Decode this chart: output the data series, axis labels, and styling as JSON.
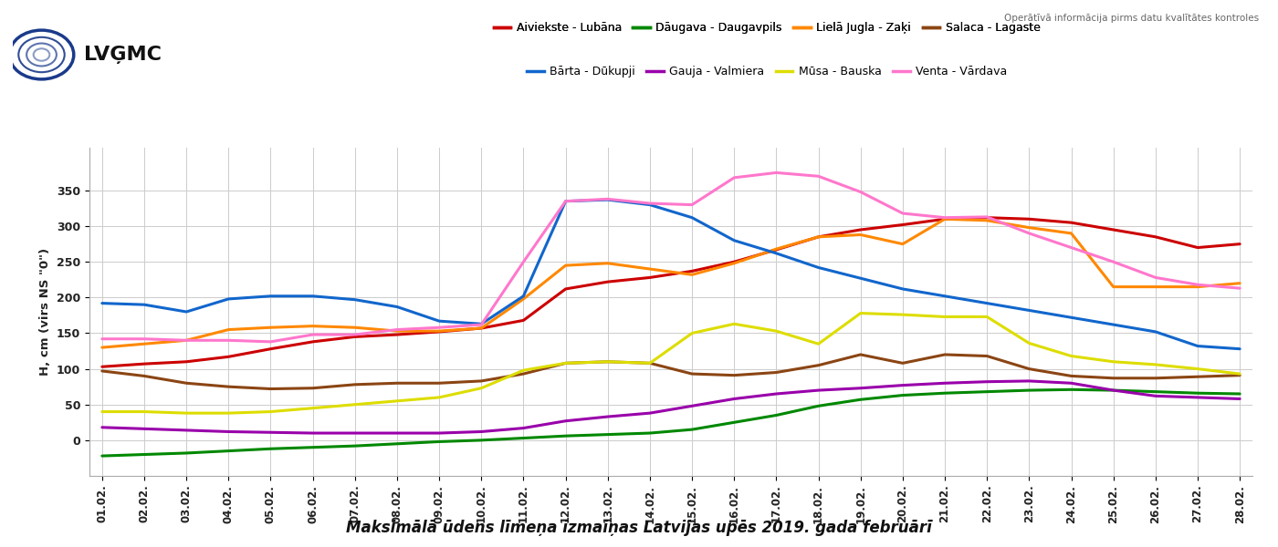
{
  "title": "Maksimālā ūdens līmeņa izmaiņas Latvijas upēs 2019. gada februārī",
  "ylabel": "H, cm (virs NS \"0\")",
  "subtitle": "Operātīvā informācija pirms datu kvalītātes kontroles",
  "dates": [
    "01.02.",
    "02.02.",
    "03.02.",
    "04.02.",
    "05.02.",
    "06.02.",
    "07.02.",
    "08.02.",
    "09.02.",
    "10.02.",
    "11.02.",
    "12.02.",
    "13.02.",
    "14.02.",
    "15.02.",
    "16.02.",
    "17.02.",
    "18.02.",
    "19.02.",
    "20.02.",
    "21.02.",
    "22.02.",
    "23.02.",
    "24.02.",
    "25.02.",
    "26.02.",
    "27.02.",
    "28.02."
  ],
  "series_order": [
    "Aiviekste - Lubāna",
    "Dāugava - Daugavpils",
    "Lielā Jugla - Zaķi",
    "Salaca - Lagaste",
    "Bārta - Dūkupji",
    "Gauja - Valmiera",
    "Mūsa - Bauska",
    "Venta - Vārdava"
  ],
  "legend_row1": [
    "Aiviekste - Lubāna",
    "Dāugava - Daugavpils",
    "Lielā Jugla - Zaķi",
    "Salaca - Lagaste"
  ],
  "legend_row2": [
    "Bārta - Dūkupji",
    "Gauja - Valmiera",
    "Mūsa - Bauska",
    "Venta - Vārdava"
  ],
  "series": {
    "Aiviekste - Lubāna": {
      "color": "#cc0000",
      "data": [
        103,
        107,
        110,
        117,
        128,
        138,
        145,
        148,
        152,
        157,
        168,
        212,
        222,
        228,
        237,
        250,
        267,
        285,
        295,
        302,
        310,
        312,
        310,
        305,
        295,
        285,
        270,
        275
      ]
    },
    "Dāugava - Daugavpils": {
      "color": "#008800",
      "data": [
        -22,
        -20,
        -18,
        -15,
        -12,
        -10,
        -8,
        -5,
        -2,
        0,
        3,
        6,
        8,
        10,
        15,
        25,
        35,
        48,
        57,
        63,
        66,
        68,
        70,
        71,
        70,
        68,
        66,
        65
      ]
    },
    "Lielā Jugla - Zaķi": {
      "color": "#ff8800",
      "data": [
        130,
        135,
        140,
        155,
        158,
        160,
        158,
        153,
        153,
        157,
        198,
        245,
        248,
        240,
        232,
        248,
        268,
        285,
        288,
        275,
        310,
        308,
        298,
        290,
        215,
        215,
        215,
        220
      ]
    },
    "Salaca - Lagaste": {
      "color": "#8B4513",
      "data": [
        97,
        90,
        80,
        75,
        72,
        73,
        78,
        80,
        80,
        83,
        93,
        108,
        110,
        108,
        93,
        91,
        95,
        105,
        120,
        108,
        120,
        118,
        100,
        90,
        87,
        87,
        89,
        91
      ]
    },
    "Bārta - Dūkupji": {
      "color": "#1166cc",
      "data": [
        192,
        190,
        180,
        198,
        202,
        202,
        197,
        187,
        167,
        163,
        202,
        335,
        337,
        330,
        312,
        280,
        262,
        242,
        227,
        212,
        202,
        192,
        182,
        172,
        162,
        152,
        132,
        128
      ]
    },
    "Gauja - Valmiera": {
      "color": "#9900aa",
      "data": [
        18,
        16,
        14,
        12,
        11,
        10,
        10,
        10,
        10,
        12,
        17,
        27,
        33,
        38,
        48,
        58,
        65,
        70,
        73,
        77,
        80,
        82,
        83,
        80,
        70,
        62,
        60,
        58
      ]
    },
    "Mūsa - Bauska": {
      "color": "#dddd00",
      "data": [
        40,
        40,
        38,
        38,
        40,
        45,
        50,
        55,
        60,
        73,
        98,
        108,
        110,
        108,
        150,
        163,
        153,
        135,
        178,
        176,
        173,
        173,
        136,
        118,
        110,
        106,
        100,
        93
      ]
    },
    "Venta - Vārdava": {
      "color": "#ff77cc",
      "data": [
        142,
        142,
        140,
        140,
        138,
        148,
        148,
        155,
        158,
        162,
        250,
        335,
        338,
        332,
        330,
        368,
        375,
        370,
        348,
        318,
        312,
        313,
        290,
        270,
        250,
        228,
        218,
        213
      ]
    }
  },
  "ylim": [
    -50,
    410
  ],
  "yticks": [
    0,
    50,
    100,
    150,
    200,
    250,
    300,
    350
  ],
  "bg_color": "#ffffff",
  "grid_color": "#cccccc",
  "logo_text": "LVĢMC",
  "logo_color": "#003399"
}
